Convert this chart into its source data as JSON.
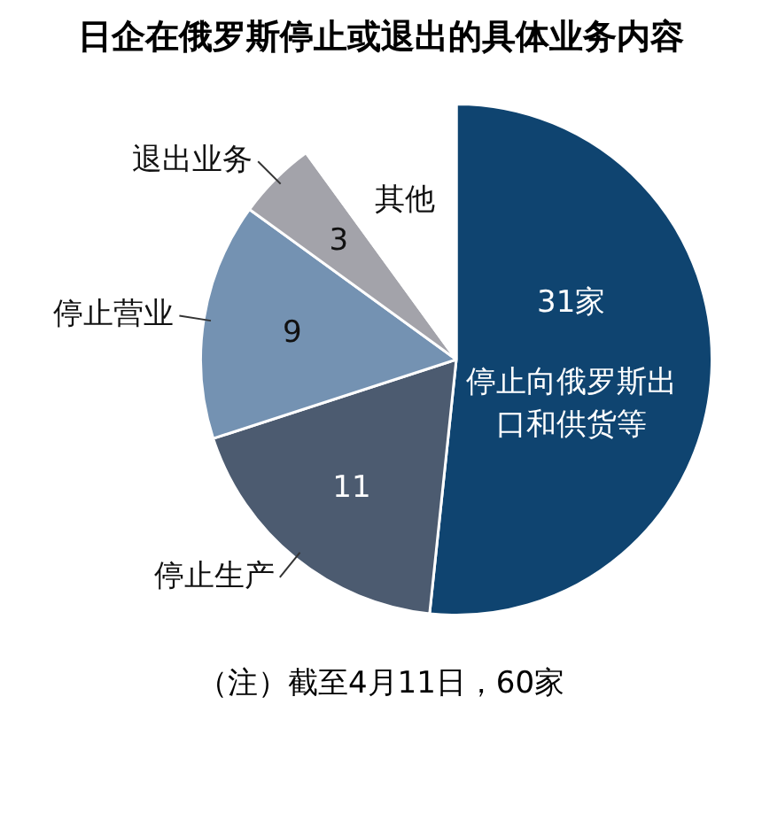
{
  "chart_data": {
    "type": "pie",
    "title": "日企在俄罗斯停止或退出的具体业务内容",
    "categories": [
      "停止向俄罗斯出口和供货等",
      "停止生产",
      "停止营业",
      "退出业务",
      "其他"
    ],
    "values": [
      31,
      11,
      9,
      3,
      6
    ],
    "value_labels": [
      "31家",
      "11",
      "9",
      "3",
      null
    ],
    "colors": [
      "#0f4470",
      "#4c5b70",
      "#7492b2",
      "#a3a3aa",
      "#ffffff"
    ],
    "annotations": [
      "（注）截至4月11日，60家"
    ]
  }
}
